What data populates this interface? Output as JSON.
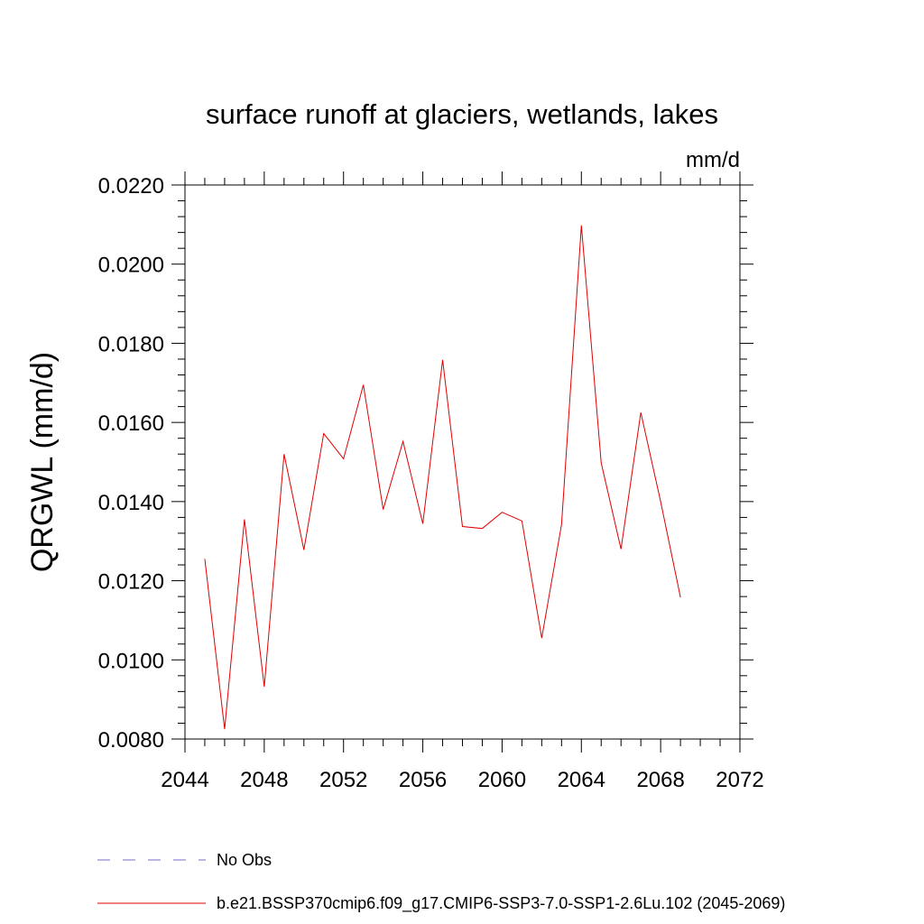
{
  "chart_data": {
    "type": "line",
    "title": "surface runoff at glaciers, wetlands, lakes",
    "units": "mm/d",
    "xlabel": "",
    "ylabel": "QRGWL  (mm/d)",
    "xlim": [
      2044,
      2072
    ],
    "ylim": [
      0.008,
      0.022
    ],
    "x_ticks": [
      "2044",
      "2048",
      "2052",
      "2056",
      "2060",
      "2064",
      "2068",
      "2072"
    ],
    "y_ticks": [
      "0.0080",
      "0.0100",
      "0.0120",
      "0.0140",
      "0.0160",
      "0.0180",
      "0.0200",
      "0.0220"
    ],
    "grid": false,
    "legend_position": "bottom",
    "legend": [
      {
        "label": "No Obs",
        "color": "#7b68c8",
        "dash": true
      },
      {
        "label": "b.e21.BSSP370cmip6.f09_g17.CMIP6-SSP3-7.0-SSP1-2.6Lu.102 (2045-2069)",
        "color": "#e00000",
        "dash": false
      }
    ],
    "series": [
      {
        "name": "b.e21.BSSP370cmip6.f09_g17.CMIP6-SSP3-7.0-SSP1-2.6Lu.102 (2045-2069)",
        "color": "#e00000",
        "x": [
          2045,
          2046,
          2047,
          2048,
          2049,
          2050,
          2051,
          2052,
          2053,
          2054,
          2055,
          2056,
          2057,
          2058,
          2059,
          2060,
          2061,
          2062,
          2063,
          2064,
          2065,
          2066,
          2067,
          2068,
          2069
        ],
        "values": [
          0.01255,
          0.00825,
          0.01355,
          0.00932,
          0.0152,
          0.01278,
          0.01572,
          0.01508,
          0.01695,
          0.0138,
          0.01552,
          0.01344,
          0.01758,
          0.01337,
          0.01332,
          0.01373,
          0.01351,
          0.01055,
          0.01342,
          0.02098,
          0.01498,
          0.0128,
          0.01625,
          0.014,
          0.01158
        ]
      }
    ]
  }
}
